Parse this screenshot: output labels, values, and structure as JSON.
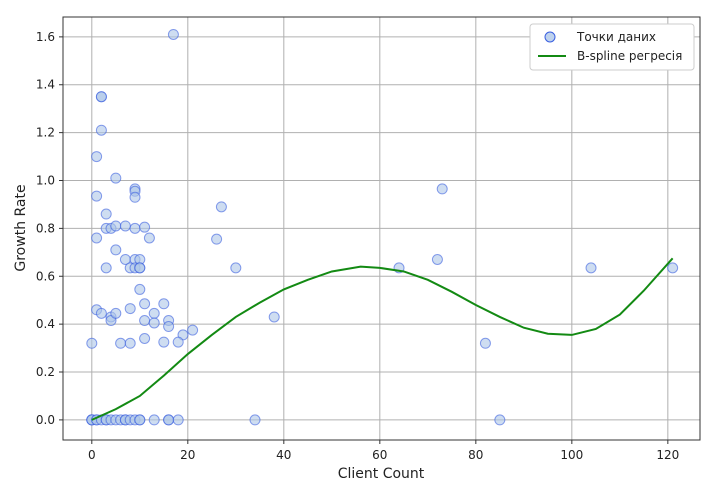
{
  "chart_data": {
    "type": "scatter",
    "title": "",
    "xlabel": "Client Count",
    "ylabel": "Growth Rate",
    "xlim": [
      -6,
      126.7
    ],
    "ylim": [
      -0.084,
      1.683
    ],
    "xticks": [
      0,
      20,
      40,
      60,
      80,
      100,
      120
    ],
    "yticks": [
      0.0,
      0.2,
      0.4,
      0.6,
      0.8,
      1.0,
      1.2,
      1.4,
      1.6
    ],
    "grid": true,
    "legend_position": "top-right",
    "colors": {
      "points_fill": "#aec7e8",
      "points_edge": "#3a5fe0",
      "line": "#138a13"
    },
    "series": [
      {
        "name": "Точки даних",
        "kind": "scatter",
        "points": [
          [
            17,
            1.61
          ],
          [
            2,
            1.35
          ],
          [
            2,
            1.35
          ],
          [
            2,
            1.21
          ],
          [
            1,
            1.1
          ],
          [
            5,
            1.01
          ],
          [
            9,
            0.965
          ],
          [
            9,
            0.955
          ],
          [
            9,
            0.93
          ],
          [
            1,
            0.935
          ],
          [
            27,
            0.89
          ],
          [
            3,
            0.86
          ],
          [
            3,
            0.8
          ],
          [
            4,
            0.8
          ],
          [
            5,
            0.81
          ],
          [
            7,
            0.81
          ],
          [
            9,
            0.8
          ],
          [
            11,
            0.805
          ],
          [
            1,
            0.76
          ],
          [
            12,
            0.76
          ],
          [
            26,
            0.755
          ],
          [
            5,
            0.71
          ],
          [
            7,
            0.67
          ],
          [
            9,
            0.67
          ],
          [
            10,
            0.67
          ],
          [
            3,
            0.635
          ],
          [
            8,
            0.635
          ],
          [
            9,
            0.635
          ],
          [
            10,
            0.635
          ],
          [
            10,
            0.635
          ],
          [
            30,
            0.635
          ],
          [
            64,
            0.635
          ],
          [
            104,
            0.635
          ],
          [
            121,
            0.635
          ],
          [
            72,
            0.67
          ],
          [
            73,
            0.965
          ],
          [
            10,
            0.545
          ],
          [
            1,
            0.46
          ],
          [
            2,
            0.445
          ],
          [
            4,
            0.43
          ],
          [
            4,
            0.415
          ],
          [
            5,
            0.445
          ],
          [
            8,
            0.465
          ],
          [
            11,
            0.485
          ],
          [
            15,
            0.485
          ],
          [
            11,
            0.415
          ],
          [
            13,
            0.445
          ],
          [
            13,
            0.405
          ],
          [
            16,
            0.415
          ],
          [
            16,
            0.39
          ],
          [
            21,
            0.375
          ],
          [
            19,
            0.355
          ],
          [
            18,
            0.325
          ],
          [
            15,
            0.325
          ],
          [
            11,
            0.34
          ],
          [
            6,
            0.32
          ],
          [
            8,
            0.32
          ],
          [
            0,
            0.32
          ],
          [
            38,
            0.43
          ],
          [
            82,
            0.32
          ],
          [
            0,
            0
          ],
          [
            0,
            0
          ],
          [
            0,
            0
          ],
          [
            1,
            0
          ],
          [
            1,
            0
          ],
          [
            2,
            0
          ],
          [
            3,
            0
          ],
          [
            3,
            0
          ],
          [
            4,
            0
          ],
          [
            5,
            0
          ],
          [
            6,
            0
          ],
          [
            7,
            0
          ],
          [
            7,
            0
          ],
          [
            8,
            0
          ],
          [
            9,
            0
          ],
          [
            10,
            0
          ],
          [
            10,
            0
          ],
          [
            13,
            0
          ],
          [
            16,
            0
          ],
          [
            16,
            0
          ],
          [
            18,
            0
          ],
          [
            34,
            0
          ],
          [
            85,
            0
          ]
        ]
      },
      {
        "name": "B-spline регресія",
        "kind": "line",
        "points": [
          [
            0,
            0
          ],
          [
            5,
            0.045
          ],
          [
            10,
            0.1
          ],
          [
            15,
            0.185
          ],
          [
            20,
            0.275
          ],
          [
            25,
            0.355
          ],
          [
            30,
            0.43
          ],
          [
            35,
            0.49
          ],
          [
            40,
            0.545
          ],
          [
            45,
            0.585
          ],
          [
            50,
            0.62
          ],
          [
            56,
            0.64
          ],
          [
            60,
            0.635
          ],
          [
            65,
            0.62
          ],
          [
            70,
            0.585
          ],
          [
            75,
            0.535
          ],
          [
            80,
            0.48
          ],
          [
            85,
            0.43
          ],
          [
            90,
            0.385
          ],
          [
            95,
            0.36
          ],
          [
            100,
            0.355
          ],
          [
            105,
            0.38
          ],
          [
            110,
            0.44
          ],
          [
            115,
            0.54
          ],
          [
            121,
            0.675
          ]
        ]
      }
    ]
  }
}
